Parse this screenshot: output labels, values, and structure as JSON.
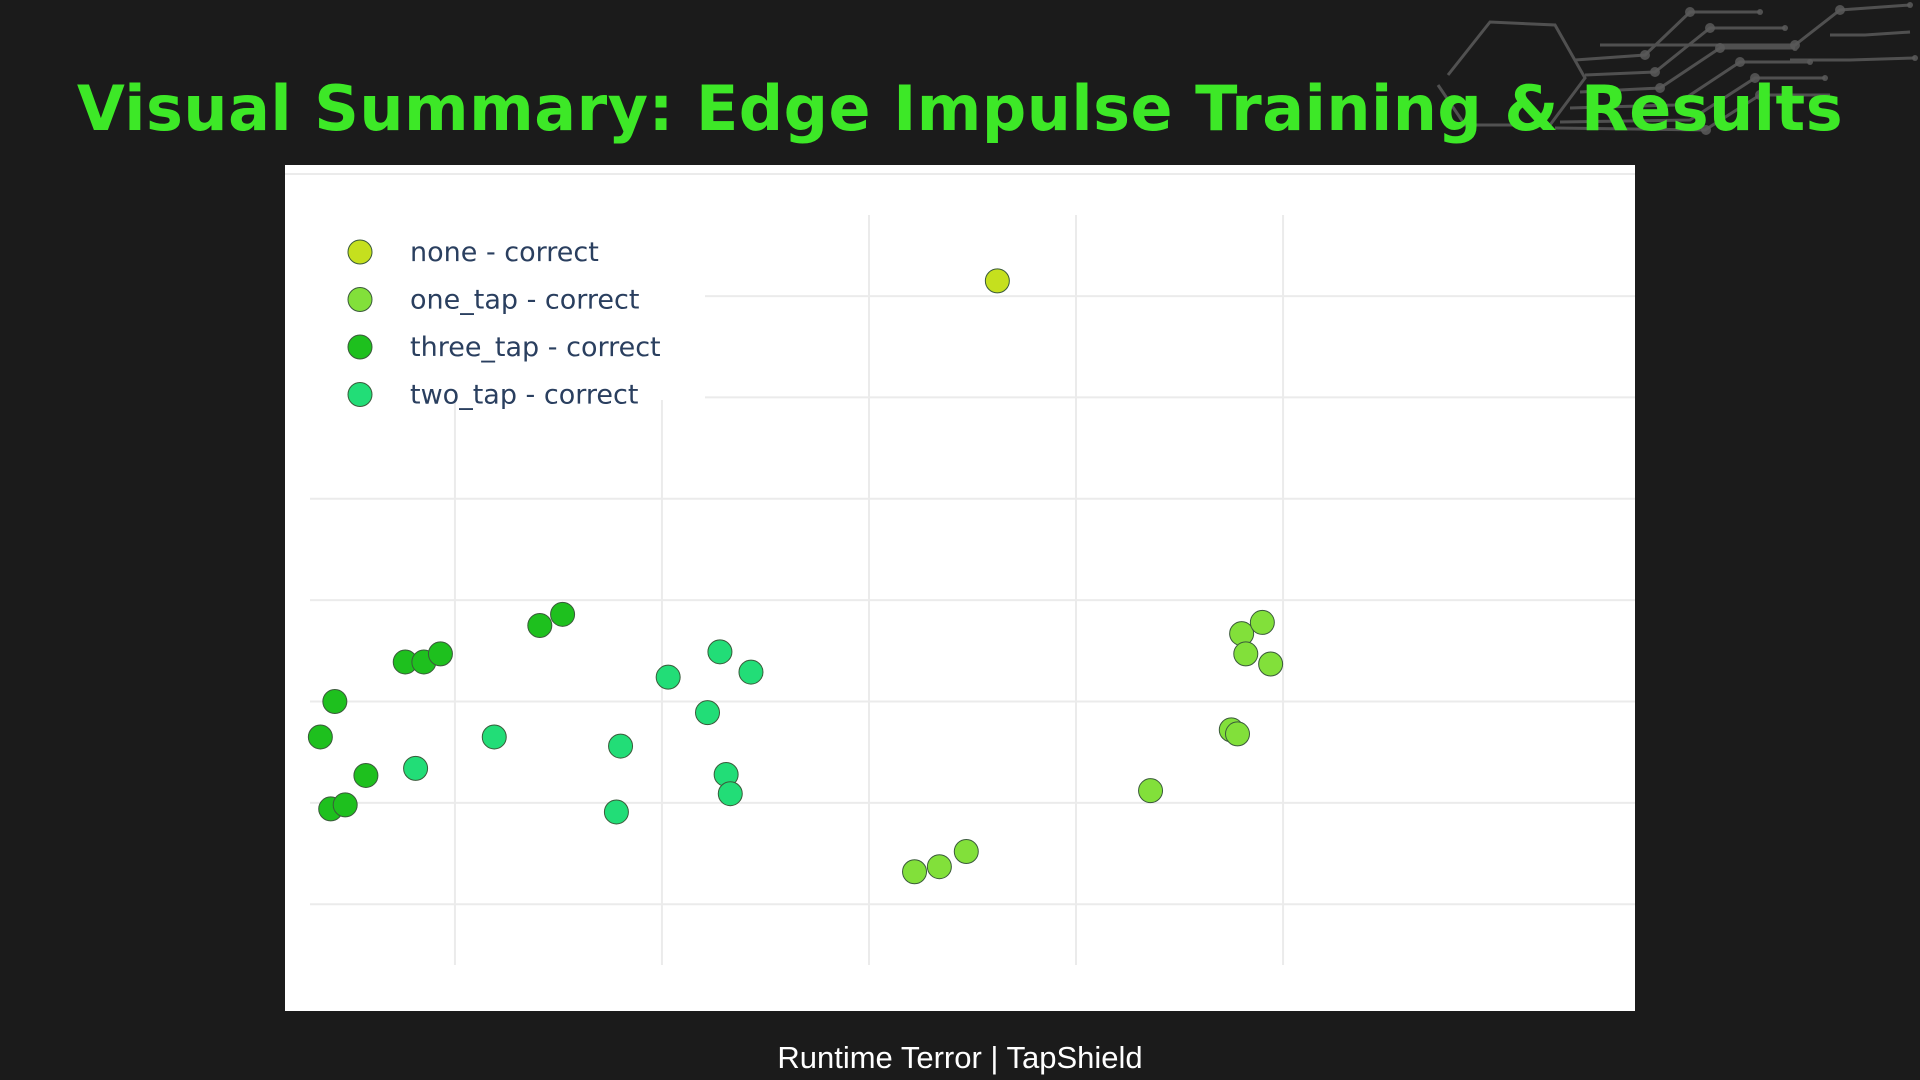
{
  "slide": {
    "title": "Visual Summary: Edge Impulse Training & Results",
    "footer": "Runtime Terror | TapShield"
  },
  "chart_data": {
    "type": "scatter",
    "title": "",
    "xlabel": "",
    "ylabel": "",
    "xlim": [
      -0.7,
      5.7
    ],
    "ylim": [
      -0.6,
      6.8
    ],
    "grid": true,
    "x_gridlines": [
      0,
      1,
      2,
      3,
      4
    ],
    "y_gridlines": [
      0,
      1,
      2,
      3,
      4,
      5,
      6
    ],
    "legend": {
      "position": "top-left"
    },
    "series": [
      {
        "name": "none - correct",
        "color": "#c5e01e",
        "points": [
          [
            2.62,
            6.15
          ]
        ]
      },
      {
        "name": "one_tap - correct",
        "color": "#82e03a",
        "points": [
          [
            2.22,
            0.32
          ],
          [
            2.34,
            0.37
          ],
          [
            2.47,
            0.52
          ],
          [
            3.36,
            1.12
          ],
          [
            3.75,
            1.72
          ],
          [
            3.78,
            1.68
          ],
          [
            3.8,
            2.67
          ],
          [
            3.82,
            2.47
          ],
          [
            3.9,
            2.78
          ],
          [
            3.94,
            2.37
          ]
        ]
      },
      {
        "name": "three_tap - correct",
        "color": "#1ec01e",
        "points": [
          [
            -0.65,
            1.65
          ],
          [
            -0.58,
            2.0
          ],
          [
            -0.43,
            1.27
          ],
          [
            -0.6,
            0.94
          ],
          [
            -0.53,
            0.98
          ],
          [
            -0.24,
            2.39
          ],
          [
            -0.15,
            2.39
          ],
          [
            -0.07,
            2.47
          ],
          [
            0.41,
            2.75
          ],
          [
            0.52,
            2.86
          ]
        ]
      },
      {
        "name": "two_tap - correct",
        "color": "#22dd77",
        "points": [
          [
            -0.19,
            1.34
          ],
          [
            0.19,
            1.65
          ],
          [
            0.8,
            1.56
          ],
          [
            0.78,
            0.91
          ],
          [
            1.03,
            2.24
          ],
          [
            1.22,
            1.89
          ],
          [
            1.28,
            2.49
          ],
          [
            1.43,
            2.29
          ],
          [
            1.31,
            1.28
          ],
          [
            1.33,
            1.09
          ]
        ]
      }
    ]
  },
  "colors": {
    "background": "#1b1b1b",
    "title": "#3de827",
    "panel": "#ffffff",
    "grid": "#ebebeb",
    "legend_text": "#2a3f5f",
    "marker_outline": "#3a5a3a"
  },
  "decor": {
    "icon": "circuit-board-icon"
  }
}
